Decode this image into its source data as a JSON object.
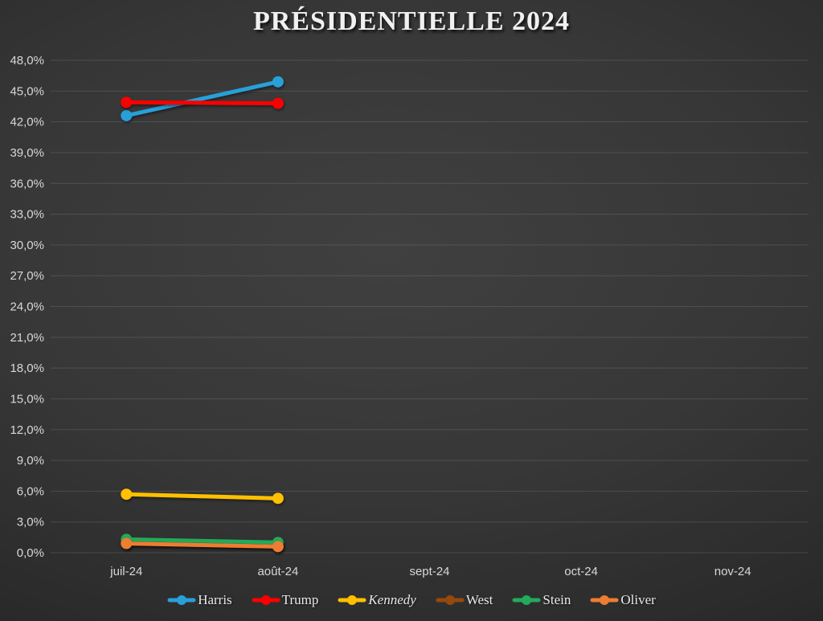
{
  "chart_data": {
    "type": "line",
    "title": "PRÉSIDENTIELLE 2024",
    "categories": [
      "juil-24",
      "août-24",
      "sept-24",
      "oct-24",
      "nov-24"
    ],
    "y_ticks": [
      "0,0%",
      "3,0%",
      "6,0%",
      "9,0%",
      "12,0%",
      "15,0%",
      "18,0%",
      "21,0%",
      "24,0%",
      "27,0%",
      "30,0%",
      "33,0%",
      "36,0%",
      "39,0%",
      "42,0%",
      "45,0%",
      "48,0%"
    ],
    "ylim": [
      0,
      48
    ],
    "y_step": 3,
    "grid": true,
    "legend_position": "bottom",
    "series": [
      {
        "name": "Harris",
        "color": "#28A0D9",
        "values": [
          42.6,
          45.9
        ],
        "italic": false
      },
      {
        "name": "Trump",
        "color": "#FB0000",
        "values": [
          43.9,
          43.8
        ],
        "italic": false
      },
      {
        "name": "Kennedy",
        "color": "#FFC000",
        "values": [
          5.7,
          5.3
        ],
        "italic": true
      },
      {
        "name": "West",
        "color": "#96490D",
        "values": [
          0.9,
          0.6
        ],
        "italic": false
      },
      {
        "name": "Stein",
        "color": "#23AA5A",
        "values": [
          1.3,
          1.0
        ],
        "italic": false
      },
      {
        "name": "Oliver",
        "color": "#ED7D31",
        "values": [
          0.9,
          0.6
        ],
        "italic": false
      }
    ]
  }
}
